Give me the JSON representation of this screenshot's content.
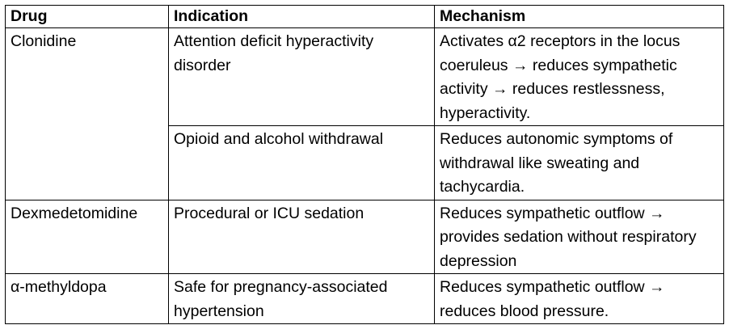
{
  "table": {
    "headers": {
      "drug": "Drug",
      "indication": "Indication",
      "mechanism": "Mechanism"
    },
    "rows": [
      {
        "drug": "Clonidine",
        "indication": "Attention deficit hyperactivity disorder",
        "mechanism": "Activates α2 receptors in the locus coeruleus → reduces sympathetic activity → reduces restlessness, hyperactivity."
      },
      {
        "drug": "",
        "indication": "Opioid and alcohol withdrawal",
        "mechanism": "Reduces autonomic symptoms of withdrawal like sweating and tachycardia."
      },
      {
        "drug": "Dexmedetomidine",
        "indication": "Procedural or ICU sedation",
        "mechanism": "Reduces sympathetic outflow → provides sedation without respiratory depression"
      },
      {
        "drug": "α-methyldopa",
        "indication": "Safe for pregnancy-associated hypertension",
        "mechanism": "Reduces sympathetic outflow → reduces blood pressure."
      }
    ]
  }
}
